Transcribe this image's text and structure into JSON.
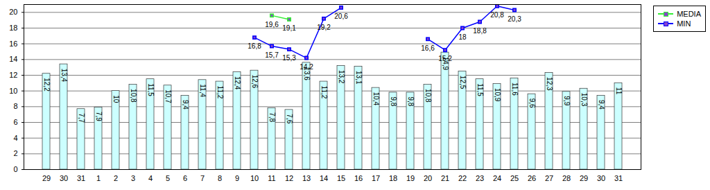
{
  "chart_data": {
    "type": "bar",
    "categories": [
      "29",
      "30",
      "31",
      "1",
      "2",
      "3",
      "4",
      "5",
      "6",
      "7",
      "8",
      "9",
      "10",
      "11",
      "12",
      "13",
      "14",
      "15",
      "16",
      "17",
      "18",
      "19",
      "20",
      "21",
      "22",
      "23",
      "24",
      "25",
      "26",
      "27",
      "28",
      "29",
      "30",
      "31"
    ],
    "series": [
      {
        "type": "bar",
        "color": "#ccffff",
        "values": [
          12.2,
          13.4,
          7.7,
          7.9,
          10,
          10.8,
          11.5,
          10.7,
          9.4,
          11.4,
          11.2,
          12.4,
          12.6,
          7.8,
          7.6,
          13.6,
          11.2,
          13.2,
          13.1,
          10.4,
          9.8,
          9.8,
          10.8,
          14.9,
          12.5,
          11.5,
          10.9,
          11.6,
          9.6,
          12.3,
          9.9,
          10.3,
          9.4,
          11
        ],
        "value_labels": [
          "12,2",
          "13,4",
          "7,7",
          "7,9",
          "10",
          "10,8",
          "11,5",
          "10,7",
          "9,4",
          "11,4",
          "11,2",
          "12,4",
          "12,6",
          "7,8",
          "7,6",
          "13,6",
          "11,2",
          "13,2",
          "13,1",
          "10,4",
          "9,8",
          "9,8",
          "10,8",
          "14,9",
          "12,5",
          "11,5",
          "10,9",
          "11,6",
          "9,6",
          "12,3",
          "9,9",
          "10,3",
          "9,4",
          "11"
        ]
      },
      {
        "name": "MEDIA",
        "type": "line",
        "color": "#33ee33",
        "marker": "square",
        "values": [
          null,
          null,
          null,
          null,
          null,
          null,
          null,
          null,
          null,
          null,
          null,
          null,
          null,
          19.6,
          19.1,
          null,
          null,
          null,
          null,
          null,
          null,
          null,
          null,
          null,
          null,
          null,
          null,
          null,
          null,
          null,
          null,
          null,
          null,
          null
        ],
        "value_labels": [
          null,
          null,
          null,
          null,
          null,
          null,
          null,
          null,
          null,
          null,
          null,
          null,
          null,
          "19,6",
          "19,1",
          null,
          null,
          null,
          null,
          null,
          null,
          null,
          null,
          null,
          null,
          null,
          null,
          null,
          null,
          null,
          null,
          null,
          null,
          null
        ]
      },
      {
        "name": "MIN",
        "type": "line",
        "color": "#0000ff",
        "marker": "square",
        "values": [
          null,
          null,
          null,
          null,
          null,
          null,
          null,
          null,
          null,
          null,
          null,
          null,
          16.8,
          15.7,
          15.3,
          14.2,
          19.2,
          20.6,
          null,
          null,
          null,
          null,
          16.6,
          15.2,
          18,
          18.8,
          20.8,
          20.3,
          null,
          null,
          null,
          null,
          null,
          null
        ],
        "value_labels": [
          null,
          null,
          null,
          null,
          null,
          null,
          null,
          null,
          null,
          null,
          null,
          null,
          "16,8",
          "15,7",
          "15,3",
          "14,2",
          "19,2",
          "20,6",
          null,
          null,
          null,
          null,
          "16,6",
          "15,2",
          "18",
          "18,8",
          "20,8",
          "20,3",
          null,
          null,
          null,
          null,
          null,
          null
        ]
      }
    ],
    "ylim": [
      0,
      21
    ],
    "yticks": [
      0,
      2,
      4,
      6,
      8,
      10,
      12,
      14,
      16,
      18,
      20
    ],
    "grid": true,
    "data_labels": true,
    "legend": "top-right"
  }
}
